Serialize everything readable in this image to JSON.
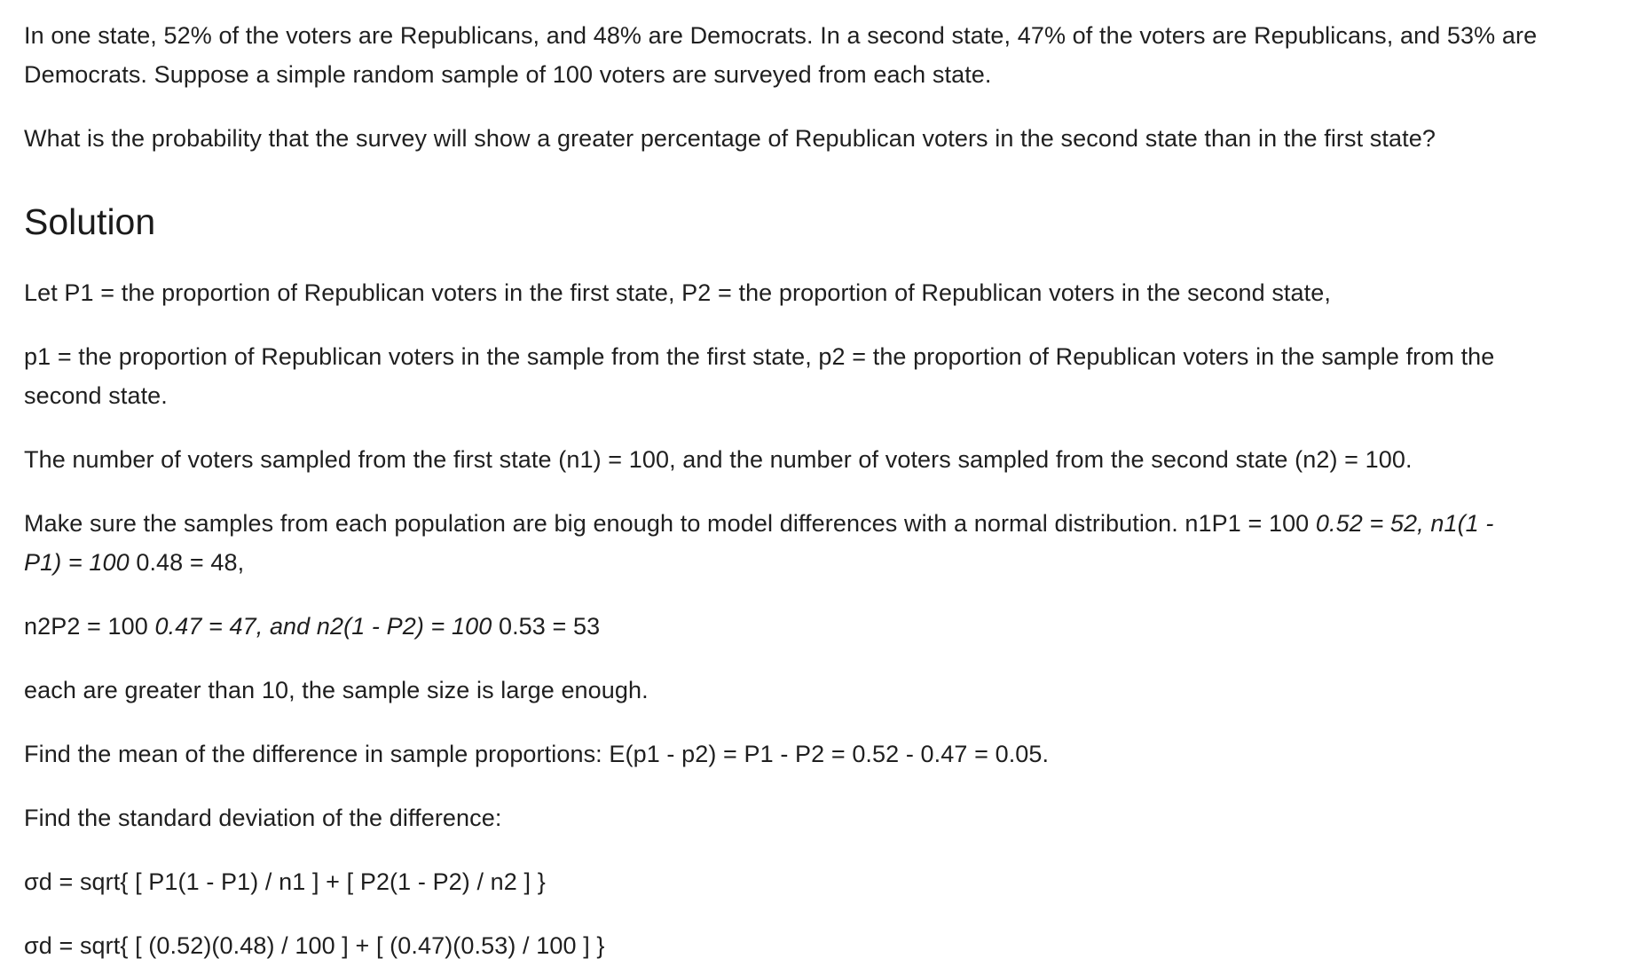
{
  "problem": {
    "intro_line1": "In one state, 52% of the voters are Republicans, and 48% are Democrats. In a second state, 47% of the voters are Republicans, and 53% are",
    "intro_line2": "Democrats. Suppose a simple random sample of 100 voters are surveyed from each state.",
    "question": "What is the probability that the survey will show a greater percentage of Republican voters in the second state than in the first state?"
  },
  "solution": {
    "heading": "Solution",
    "define_P": "Let P1 = the proportion of Republican voters in the first state, P2 = the proportion of Republican voters in the second state,",
    "define_p_line1": "p1 = the proportion of Republican voters in the sample from the first state, p2 = the proportion of Republican voters in the sample from the",
    "define_p_line2": "second state.",
    "sample_sizes": "The number of voters sampled from the first state (n1) = 100, and the number of voters sampled from the second state (n2) = 100.",
    "check_a": "Make sure the samples from each population are big enough to model differences with a normal distribution. n1P1 = 100 ",
    "check_a_italic": "0.52 = 52, n1(1 -",
    "check_b_italic": "P1) = 100 ",
    "check_b": "0.48 = 48,",
    "check2_a": "n2P2 = 100 ",
    "check2_italic": "0.47 = 47, and n2(1 - P2) = 100 ",
    "check2_b": "0.53 = 53",
    "conclusion": "each are greater than 10, the sample size is large enough.",
    "mean": "Find the mean of the difference in sample proportions: E(p1 - p2) = P1 - P2 = 0.52 - 0.47 = 0.05.",
    "sd_intro": "Find the standard deviation of the difference:",
    "sd_formula": "σd = sqrt{ [ P1(1 - P1) / n1 ] + [ P2(1 - P2) / n2 ] }",
    "sd_values": "σd = sqrt{ [ (0.52)(0.48) / 100 ] + [ (0.47)(0.53) / 100 ] }"
  }
}
